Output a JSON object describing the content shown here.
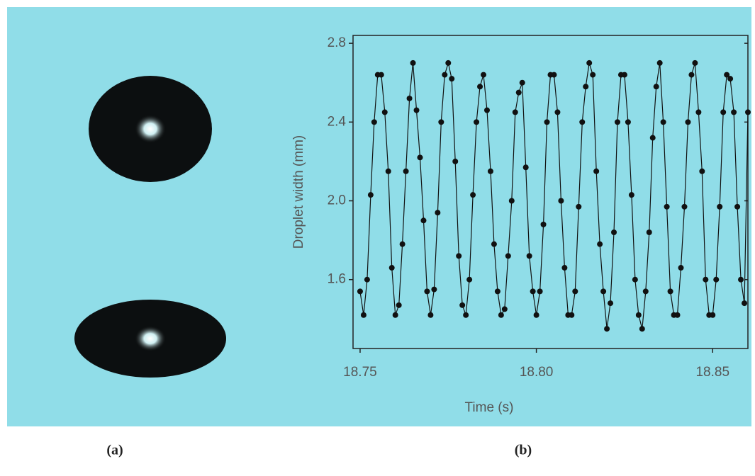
{
  "chart_data": {
    "type": "line",
    "xlabel": "Time (s)",
    "ylabel": "Droplet width (mm)",
    "x": [
      18.75,
      18.751,
      18.752,
      18.753,
      18.754,
      18.755,
      18.756,
      18.757,
      18.758,
      18.759,
      18.76,
      18.761,
      18.762,
      18.763,
      18.764,
      18.765,
      18.766,
      18.767,
      18.768,
      18.769,
      18.77,
      18.771,
      18.772,
      18.773,
      18.774,
      18.775,
      18.776,
      18.777,
      18.778,
      18.779,
      18.78,
      18.781,
      18.782,
      18.783,
      18.784,
      18.785,
      18.786,
      18.787,
      18.788,
      18.789,
      18.79,
      18.791,
      18.792,
      18.793,
      18.794,
      18.795,
      18.796,
      18.797,
      18.798,
      18.799,
      18.8,
      18.801,
      18.802,
      18.803,
      18.804,
      18.805,
      18.806,
      18.807,
      18.808,
      18.809,
      18.81,
      18.811,
      18.812,
      18.813,
      18.814,
      18.815,
      18.816,
      18.817,
      18.818,
      18.819,
      18.82,
      18.821,
      18.822,
      18.823,
      18.824,
      18.825,
      18.826,
      18.827,
      18.828,
      18.829,
      18.83,
      18.831,
      18.832,
      18.833,
      18.834,
      18.835,
      18.836,
      18.837,
      18.838,
      18.839,
      18.84,
      18.841,
      18.842,
      18.843,
      18.844,
      18.845,
      18.846,
      18.847,
      18.848,
      18.849,
      18.85,
      18.851,
      18.852,
      18.853,
      18.854,
      18.855,
      18.856,
      18.857,
      18.858,
      18.859,
      18.86
    ],
    "values": [
      1.54,
      1.42,
      1.6,
      2.03,
      2.4,
      2.64,
      2.64,
      2.45,
      2.15,
      1.66,
      1.42,
      1.47,
      1.78,
      2.15,
      2.52,
      2.7,
      2.46,
      2.22,
      1.9,
      1.54,
      1.42,
      1.55,
      1.94,
      2.4,
      2.64,
      2.7,
      2.62,
      2.2,
      1.72,
      1.47,
      1.42,
      1.6,
      2.03,
      2.4,
      2.58,
      2.64,
      2.46,
      2.15,
      1.78,
      1.54,
      1.42,
      1.45,
      1.72,
      2.0,
      2.45,
      2.55,
      2.6,
      2.17,
      1.72,
      1.54,
      1.42,
      1.54,
      1.88,
      2.4,
      2.64,
      2.64,
      2.45,
      2.0,
      1.66,
      1.42,
      1.42,
      1.54,
      1.97,
      2.4,
      2.58,
      2.7,
      2.64,
      2.15,
      1.78,
      1.54,
      1.35,
      1.48,
      1.84,
      2.4,
      2.64,
      2.64,
      2.4,
      2.03,
      1.6,
      1.42,
      1.35,
      1.54,
      1.84,
      2.32,
      2.58,
      2.7,
      2.4,
      1.97,
      1.54,
      1.42,
      1.42,
      1.66,
      1.97,
      2.4,
      2.64,
      2.7,
      2.45,
      2.15,
      1.6,
      1.42,
      1.42,
      1.6,
      1.97,
      2.45,
      2.64,
      2.62,
      2.45,
      1.97,
      1.6,
      1.48,
      2.45
    ],
    "color": "#111111",
    "xlim": [
      18.748,
      18.86
    ],
    "xticks": [
      18.75,
      {
        "value": 18.8,
        "label": "18.80"
      },
      18.85
    ],
    "ylim": [
      1.25,
      2.84
    ],
    "yticks": [
      1.6,
      {
        "value": 2,
        "label": "2.0"
      },
      2.4,
      2.8
    ]
  },
  "captions": [
    "(a)",
    "(b)"
  ]
}
